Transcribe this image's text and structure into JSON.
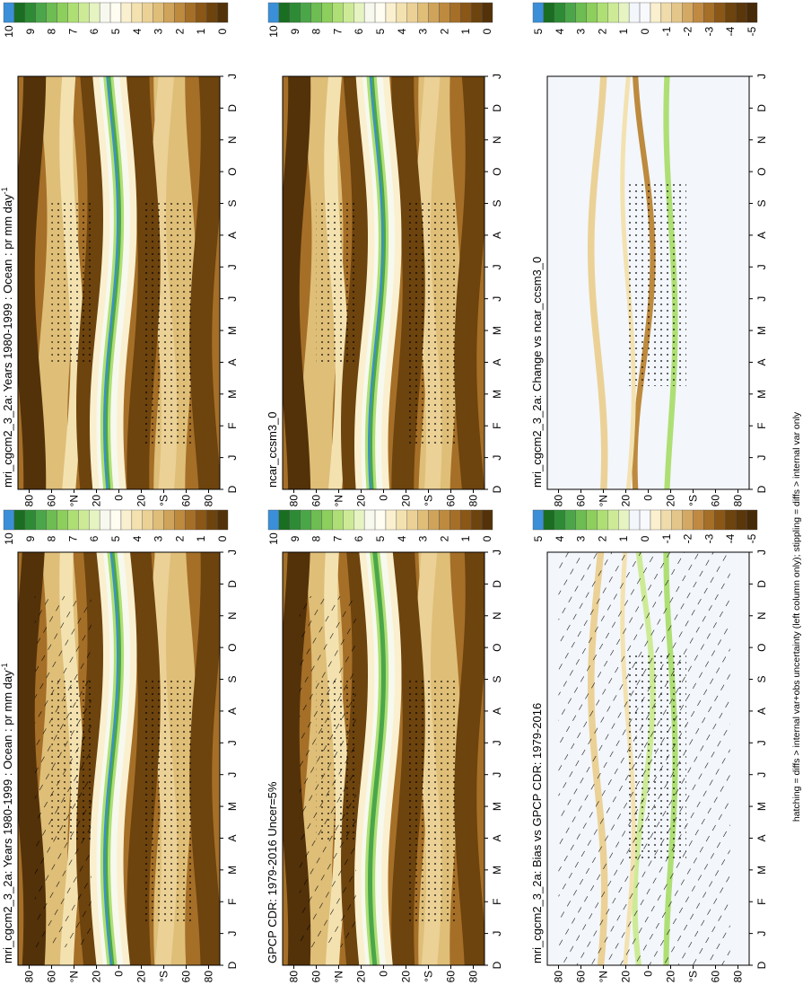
{
  "rows": [
    {
      "colorbar_ticks": [
        10,
        9,
        8,
        7,
        6,
        5,
        4,
        3,
        2,
        1,
        0
      ],
      "panels": [
        {
          "title": "mri_cgcm2_3_2a: Years 1980-1999 : Ocean : pr mm day",
          "title_sup": "-1"
        },
        {
          "title": "mri_cgcm2_3_2a: Years 1980-1999 : Ocean : pr mm day",
          "title_sup": "-1"
        }
      ]
    },
    {
      "colorbar_ticks": [
        10,
        9,
        8,
        7,
        6,
        5,
        4,
        3,
        2,
        1,
        0
      ],
      "panels": [
        {
          "title": "GPCP CDR: 1979-2016 Uncer=5%"
        },
        {
          "title": "ncar_ccsm3_0"
        }
      ]
    },
    {
      "colorbar_ticks": [
        5,
        4,
        3,
        2,
        1,
        0,
        -1,
        -2,
        -3,
        -4,
        -5
      ],
      "panels": [
        {
          "title": "mri_cgcm2_3_2a: Bias vs GPCP CDR: 1979-2016"
        },
        {
          "title": "mri_cgcm2_3_2a: Change vs ncar_ccsm3_0"
        }
      ]
    }
  ],
  "month_labels": [
    "D",
    "J",
    "F",
    "M",
    "A",
    "M",
    "J",
    "J",
    "A",
    "S",
    "O",
    "N",
    "D",
    "J"
  ],
  "lat_labels": [
    "80",
    "60",
    "°N",
    "20",
    "0",
    "20",
    "°S",
    "60",
    "80"
  ],
  "footer": "hatching = diffs > internal var+obs uncertainty (left column only); stippling = diffs > internal var only"
}
